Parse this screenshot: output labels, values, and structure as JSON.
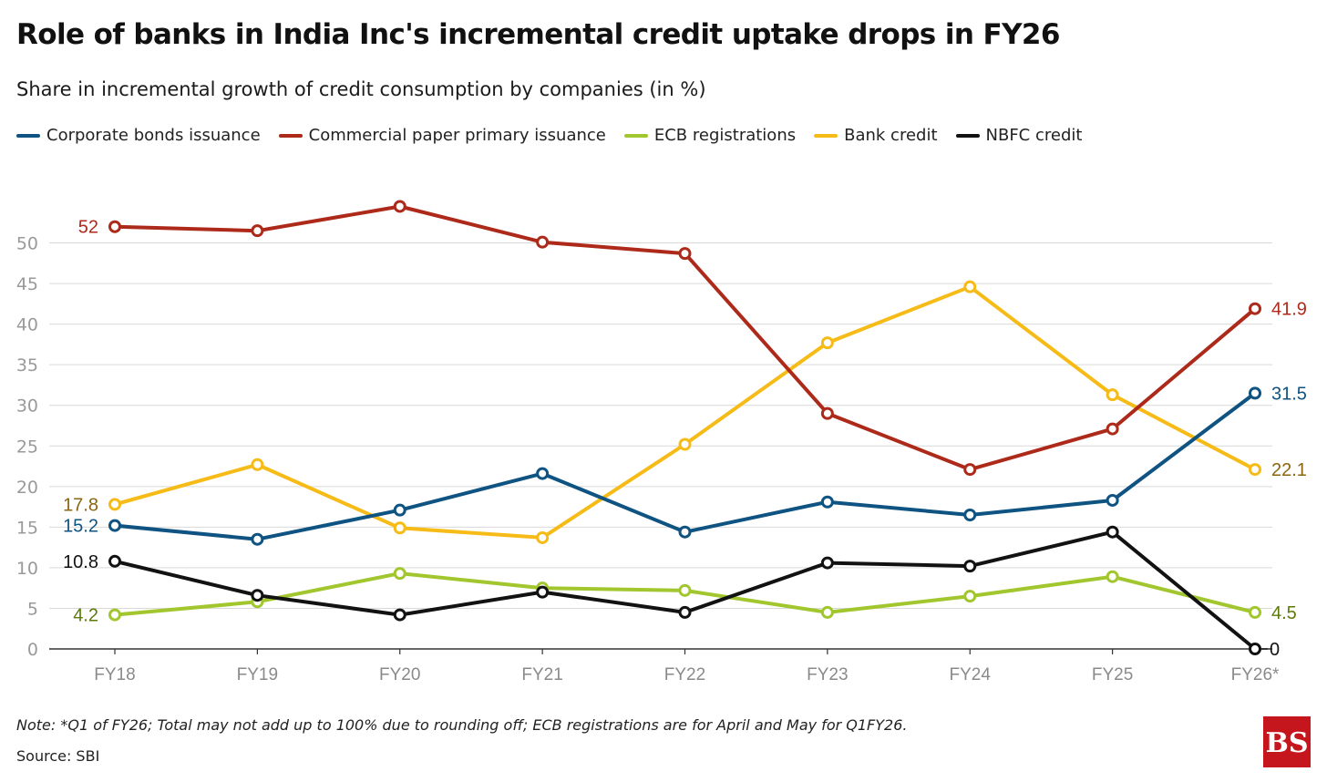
{
  "header": {
    "title": "Role of banks in India Inc's incremental credit uptake drops in FY26",
    "subtitle": "Share in incremental growth of credit consumption by companies (in %)"
  },
  "footer": {
    "note": "Note: *Q1 of FY26; Total may not add up to 100% due to rounding off; ECB registrations are for April and May for Q1FY26.",
    "source": "Source: SBI",
    "logo_text": "BS"
  },
  "chart_data": {
    "type": "line",
    "title": "Role of banks in India Inc's incremental credit uptake drops in FY26",
    "subtitle": "Share in incremental growth of credit consumption by companies (in %)",
    "xlabel": "",
    "ylabel": "",
    "ylim": [
      0,
      55
    ],
    "yticks": [
      0,
      5,
      10,
      15,
      20,
      25,
      30,
      35,
      40,
      45,
      50
    ],
    "grid": true,
    "legend_position": "top-left",
    "categories": [
      "FY18",
      "FY19",
      "FY20",
      "FY21",
      "FY22",
      "FY23",
      "FY24",
      "FY25",
      "FY26*"
    ],
    "series": [
      {
        "name": "Corporate bonds issuance",
        "color": "#0e5381",
        "label_color": "#0e5381",
        "values": [
          15.2,
          13.5,
          17.1,
          21.6,
          14.4,
          18.1,
          16.5,
          18.3,
          31.5
        ],
        "start_label": "15.2",
        "end_label": "31.5"
      },
      {
        "name": "Commercial paper primary issuance",
        "color": "#ad2a1a",
        "label_color": "#ad2a1a",
        "values": [
          52,
          51.5,
          54.5,
          50.1,
          48.7,
          29,
          22.1,
          27.1,
          41.9
        ],
        "start_label": "52",
        "end_label": "41.9"
      },
      {
        "name": "ECB registrations",
        "color": "#a2c62d",
        "label_color": "#5c7a0c",
        "values": [
          4.2,
          5.8,
          9.3,
          7.5,
          7.2,
          4.5,
          6.5,
          8.9,
          4.5
        ],
        "start_label": "4.2",
        "end_label": "4.5"
      },
      {
        "name": "Bank credit",
        "color": "#f6bb16",
        "label_color": "#8c6510",
        "values": [
          17.8,
          22.7,
          14.9,
          13.7,
          25.2,
          37.7,
          44.6,
          31.3,
          22.1
        ],
        "start_label": "17.8",
        "end_label": "22.1"
      },
      {
        "name": "NBFC credit",
        "color": "#121212",
        "label_color": "#121212",
        "values": [
          10.8,
          6.6,
          4.2,
          7.0,
          4.5,
          10.6,
          10.2,
          14.4,
          0
        ],
        "start_label": "10.8",
        "end_label": "0"
      }
    ]
  }
}
